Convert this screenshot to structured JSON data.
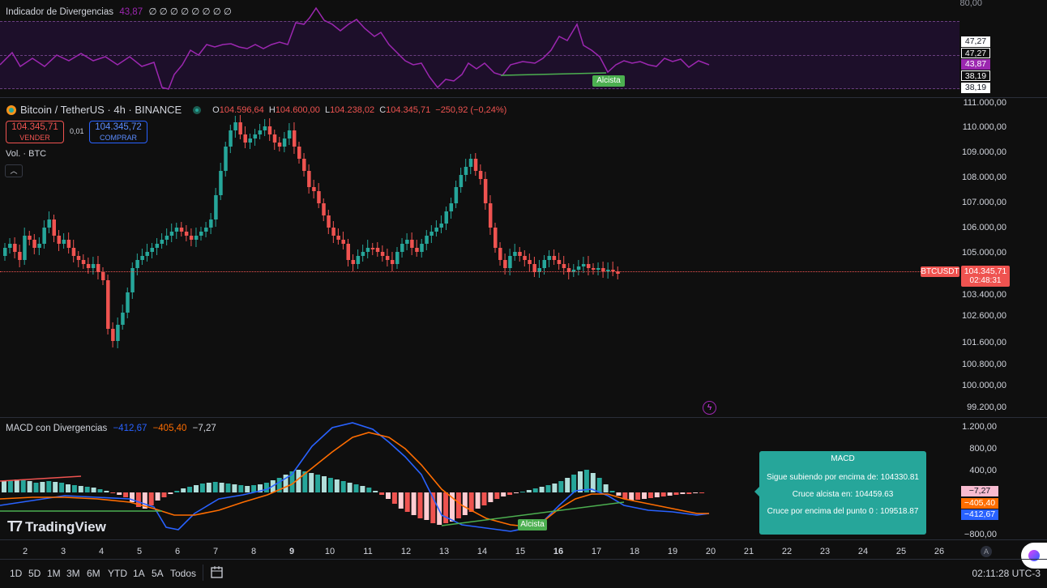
{
  "indicator_top": {
    "title": "Indicador de Divergencias",
    "value": "43,87",
    "extras": "∅ ∅ ∅ ∅ ∅ ∅ ∅ ∅",
    "axis_top": "80,00",
    "labels": [
      "47,27",
      "47,27",
      "43,87",
      "38,19",
      "38,19"
    ],
    "badge": "Alcista",
    "color": "#9c27b0"
  },
  "symbol": {
    "name": "Bitcoin / TetherUS · 4h · BINANCE",
    "o_label": "O",
    "o_value": "104.596,64",
    "h_label": "H",
    "h_value": "104.600,00",
    "l_label": "L",
    "l_value": "104.238,02",
    "c_label": "C",
    "c_value": "104.345,71",
    "change": "−250,92 (−0,24%)"
  },
  "trade": {
    "sell_price": "104.345,71",
    "sell_label": "VENDER",
    "spread": "0,01",
    "buy_price": "104.345,72",
    "buy_label": "COMPRAR"
  },
  "volume_label": "Vol. · BTC",
  "collapse_icon": "chevron-up-icon",
  "price_axis": [
    "111.000,00",
    "110.000,00",
    "109.000,00",
    "108.000,00",
    "107.000,00",
    "106.000,00",
    "105.000,00",
    "103.400,00",
    "102.600,00",
    "101.600,00",
    "100.800,00",
    "100.000,00",
    "99.200,00"
  ],
  "last_price": {
    "ticker": "BTCUSDT",
    "price": "104.345,71",
    "countdown": "02:48:31"
  },
  "macd": {
    "title": "MACD con Divergencias",
    "v1": "−412,67",
    "v2": "−405,40",
    "v3": "−7,27",
    "axis": [
      "1.200,00",
      "800,00",
      "400,00",
      "−800,00"
    ],
    "labels": [
      "−7,27",
      "−405,40",
      "−412,67"
    ],
    "badge": "Alcista",
    "tooltip": {
      "title": "MACD",
      "line1": "Sigue subiendo por encima de: 104330.81",
      "line2": "Cruce alcista en: 104459.63",
      "line3": "Cruce por encima del punto 0 : 109518.87"
    }
  },
  "dates": [
    "2",
    "3",
    "4",
    "5",
    "6",
    "7",
    "8",
    "9",
    "10",
    "11",
    "12",
    "13",
    "14",
    "15",
    "16",
    "17",
    "18",
    "19",
    "20",
    "21",
    "22",
    "23",
    "24",
    "25",
    "26"
  ],
  "bold_dates": [
    "9",
    "16"
  ],
  "auto_label": "A",
  "ranges": [
    "1D",
    "5D",
    "1M",
    "3M",
    "6M",
    "YTD",
    "1A",
    "5A",
    "Todos"
  ],
  "clock": "02:11:28 UTC-3",
  "watermark": "TradingView",
  "colors": {
    "up": "#26a69a",
    "down": "#ef5350",
    "macd": "#2962ff",
    "signal": "#ff6d00",
    "bg": "#0f0f0f"
  }
}
